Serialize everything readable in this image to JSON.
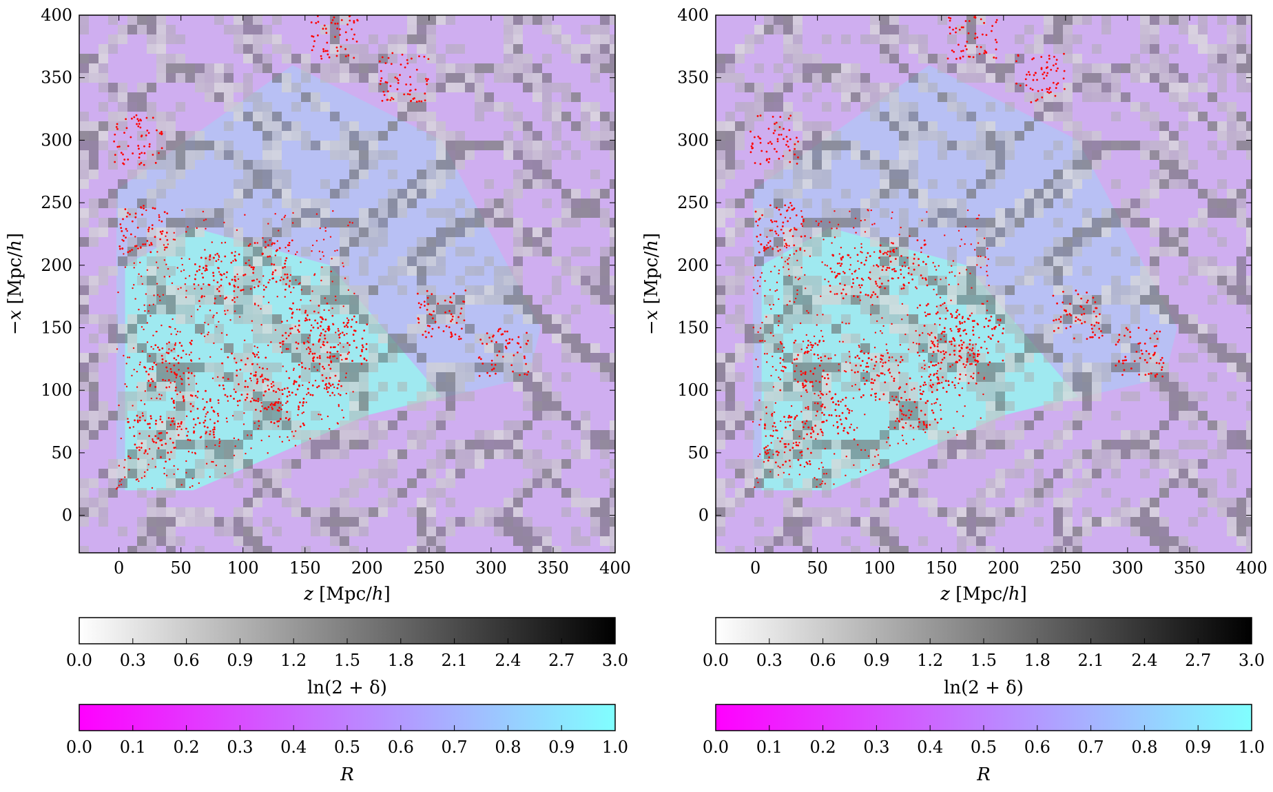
{
  "chart_data": [
    {
      "type": "heatmap",
      "panel": "left",
      "title": "",
      "xlabel_prefix": "z",
      "xlabel_unit": "[Mpc/",
      "xlabel_h": "h",
      "xlabel_close": "]",
      "ylabel_prefix": "−x",
      "ylabel_unit": "[Mpc/",
      "ylabel_h": "h",
      "ylabel_close": "]",
      "xlim": [
        -32,
        400
      ],
      "ylim": [
        -30,
        400
      ],
      "xticks": [
        "0",
        "50",
        "100",
        "150",
        "200",
        "250",
        "300",
        "350",
        "400"
      ],
      "xtick_values": [
        0,
        50,
        100,
        150,
        200,
        250,
        300,
        350,
        400
      ],
      "yticks": [
        "0",
        "50",
        "100",
        "150",
        "200",
        "250",
        "300",
        "350",
        "400"
      ],
      "ytick_values": [
        0,
        50,
        100,
        150,
        200,
        250,
        300,
        350,
        400
      ],
      "background_colors": {
        "void": "#cfaef0",
        "covered": "#b8c0f4",
        "inner": "#9fe9f0"
      },
      "survey_polygon": [
        [
          -2,
          260
        ],
        [
          140,
          360
        ],
        [
          260,
          300
        ],
        [
          340,
          150
        ],
        [
          330,
          110
        ],
        [
          200,
          80
        ],
        [
          60,
          20
        ],
        [
          -2,
          20
        ]
      ],
      "inner_region": [
        [
          5,
          200
        ],
        [
          60,
          230
        ],
        [
          170,
          200
        ],
        [
          260,
          95
        ],
        [
          200,
          80
        ],
        [
          60,
          20
        ],
        [
          5,
          20
        ]
      ],
      "galaxy_color": "#ff0000",
      "galaxy_clusters": [
        [
          25,
          60
        ],
        [
          130,
          90
        ],
        [
          160,
          115
        ],
        [
          150,
          150
        ],
        [
          120,
          200
        ],
        [
          80,
          190
        ],
        [
          20,
          230
        ],
        [
          40,
          120
        ],
        [
          60,
          80
        ],
        [
          100,
          110
        ],
        [
          260,
          160
        ],
        [
          310,
          130
        ],
        [
          180,
          140
        ],
        [
          15,
          300
        ],
        [
          175,
          385
        ],
        [
          230,
          350
        ]
      ]
    },
    {
      "type": "heatmap",
      "panel": "right",
      "title": "",
      "xlabel_prefix": "z",
      "xlabel_unit": "[Mpc/",
      "xlabel_h": "h",
      "xlabel_close": "]",
      "ylabel_prefix": "−x",
      "ylabel_unit": "[Mpc/",
      "ylabel_h": "h",
      "ylabel_close": "]",
      "xlim": [
        -32,
        400
      ],
      "ylim": [
        -30,
        400
      ],
      "xticks": [
        "0",
        "50",
        "100",
        "150",
        "200",
        "250",
        "300",
        "350",
        "400"
      ],
      "xtick_values": [
        0,
        50,
        100,
        150,
        200,
        250,
        300,
        350,
        400
      ],
      "yticks": [
        "0",
        "50",
        "100",
        "150",
        "200",
        "250",
        "300",
        "350",
        "400"
      ],
      "ytick_values": [
        0,
        50,
        100,
        150,
        200,
        250,
        300,
        350,
        400
      ],
      "background_colors": {
        "void": "#cfaef0",
        "covered": "#b8c0f4",
        "inner": "#9fe9f0"
      },
      "survey_polygon": [
        [
          -2,
          260
        ],
        [
          140,
          360
        ],
        [
          260,
          300
        ],
        [
          340,
          150
        ],
        [
          330,
          110
        ],
        [
          200,
          80
        ],
        [
          60,
          20
        ],
        [
          -2,
          20
        ]
      ],
      "inner_region": [
        [
          5,
          200
        ],
        [
          60,
          230
        ],
        [
          170,
          200
        ],
        [
          260,
          95
        ],
        [
          200,
          80
        ],
        [
          60,
          20
        ],
        [
          5,
          20
        ]
      ],
      "galaxy_color": "#ff0000",
      "galaxy_clusters": [
        [
          25,
          60
        ],
        [
          130,
          90
        ],
        [
          160,
          115
        ],
        [
          150,
          150
        ],
        [
          120,
          200
        ],
        [
          80,
          190
        ],
        [
          20,
          230
        ],
        [
          40,
          120
        ],
        [
          60,
          80
        ],
        [
          100,
          110
        ],
        [
          260,
          160
        ],
        [
          310,
          130
        ],
        [
          180,
          140
        ],
        [
          15,
          300
        ],
        [
          175,
          385
        ],
        [
          230,
          350
        ]
      ]
    }
  ],
  "colorbars": {
    "density": {
      "label": "ln(2 + δ)",
      "ticks": [
        "0.0",
        "0.3",
        "0.6",
        "0.9",
        "1.2",
        "1.5",
        "1.8",
        "2.1",
        "2.4",
        "2.7",
        "3.0"
      ],
      "range": [
        0,
        3
      ],
      "colors": [
        "#ffffff",
        "#000000"
      ]
    },
    "ratio": {
      "label": "R",
      "ticks": [
        "0.0",
        "0.1",
        "0.2",
        "0.3",
        "0.4",
        "0.5",
        "0.6",
        "0.7",
        "0.8",
        "0.9",
        "1.0"
      ],
      "range": [
        0,
        1
      ],
      "colors": [
        "#ff00ff",
        "#80ffff"
      ]
    }
  }
}
